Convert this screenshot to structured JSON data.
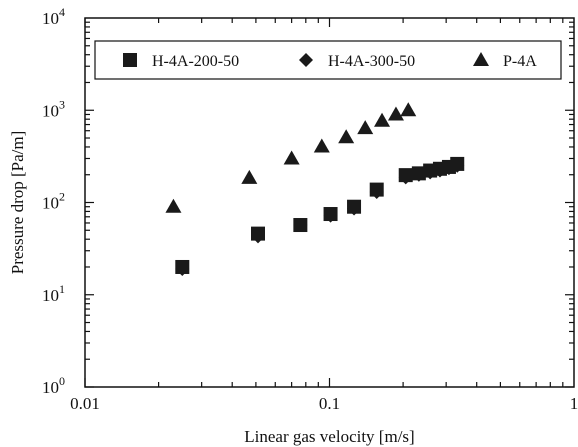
{
  "chart_data": {
    "type": "scatter",
    "xlabel": "Linear gas velocity [m/s]",
    "ylabel": "Pressure drop [Pa/m]",
    "xscale": "log",
    "yscale": "log",
    "xlim": [
      0.01,
      1
    ],
    "ylim": [
      1,
      10000
    ],
    "x_ticks": [
      {
        "value": 0.01,
        "label": "0.01"
      },
      {
        "value": 0.1,
        "label": "0.1"
      },
      {
        "value": 1,
        "label": "1"
      }
    ],
    "y_ticks": [
      {
        "value": 1,
        "base": "10",
        "exp": "0"
      },
      {
        "value": 10,
        "base": "10",
        "exp": "1"
      },
      {
        "value": 100,
        "base": "10",
        "exp": "2"
      },
      {
        "value": 1000,
        "base": "10",
        "exp": "3"
      },
      {
        "value": 10000,
        "base": "10",
        "exp": "4"
      }
    ],
    "grid": false,
    "legend_position": "top",
    "series": [
      {
        "name": "H-4A-200-50",
        "marker": "square",
        "color": "#1a1a1a",
        "points": [
          {
            "x": 0.025,
            "y": 20
          },
          {
            "x": 0.051,
            "y": 46
          },
          {
            "x": 0.076,
            "y": 57
          },
          {
            "x": 0.101,
            "y": 75
          },
          {
            "x": 0.126,
            "y": 90
          },
          {
            "x": 0.156,
            "y": 138
          },
          {
            "x": 0.205,
            "y": 198
          },
          {
            "x": 0.232,
            "y": 207
          },
          {
            "x": 0.258,
            "y": 222
          },
          {
            "x": 0.283,
            "y": 232
          },
          {
            "x": 0.308,
            "y": 243
          },
          {
            "x": 0.333,
            "y": 262
          }
        ]
      },
      {
        "name": "H-4A-300-50",
        "marker": "diamond",
        "color": "#1a1a1a",
        "points": [
          {
            "x": 0.025,
            "y": 19
          },
          {
            "x": 0.051,
            "y": 43
          },
          {
            "x": 0.076,
            "y": 57
          },
          {
            "x": 0.101,
            "y": 72
          },
          {
            "x": 0.126,
            "y": 86
          },
          {
            "x": 0.156,
            "y": 130
          },
          {
            "x": 0.205,
            "y": 187
          },
          {
            "x": 0.232,
            "y": 200
          },
          {
            "x": 0.258,
            "y": 212
          },
          {
            "x": 0.283,
            "y": 222
          },
          {
            "x": 0.308,
            "y": 236
          },
          {
            "x": 0.333,
            "y": 250
          }
        ]
      },
      {
        "name": "P-4A",
        "marker": "triangle",
        "color": "#1a1a1a",
        "points": [
          {
            "x": 0.023,
            "y": 90
          },
          {
            "x": 0.047,
            "y": 185
          },
          {
            "x": 0.07,
            "y": 300
          },
          {
            "x": 0.093,
            "y": 405
          },
          {
            "x": 0.117,
            "y": 510
          },
          {
            "x": 0.14,
            "y": 640
          },
          {
            "x": 0.164,
            "y": 770
          },
          {
            "x": 0.187,
            "y": 900
          },
          {
            "x": 0.21,
            "y": 1000
          }
        ]
      }
    ]
  }
}
